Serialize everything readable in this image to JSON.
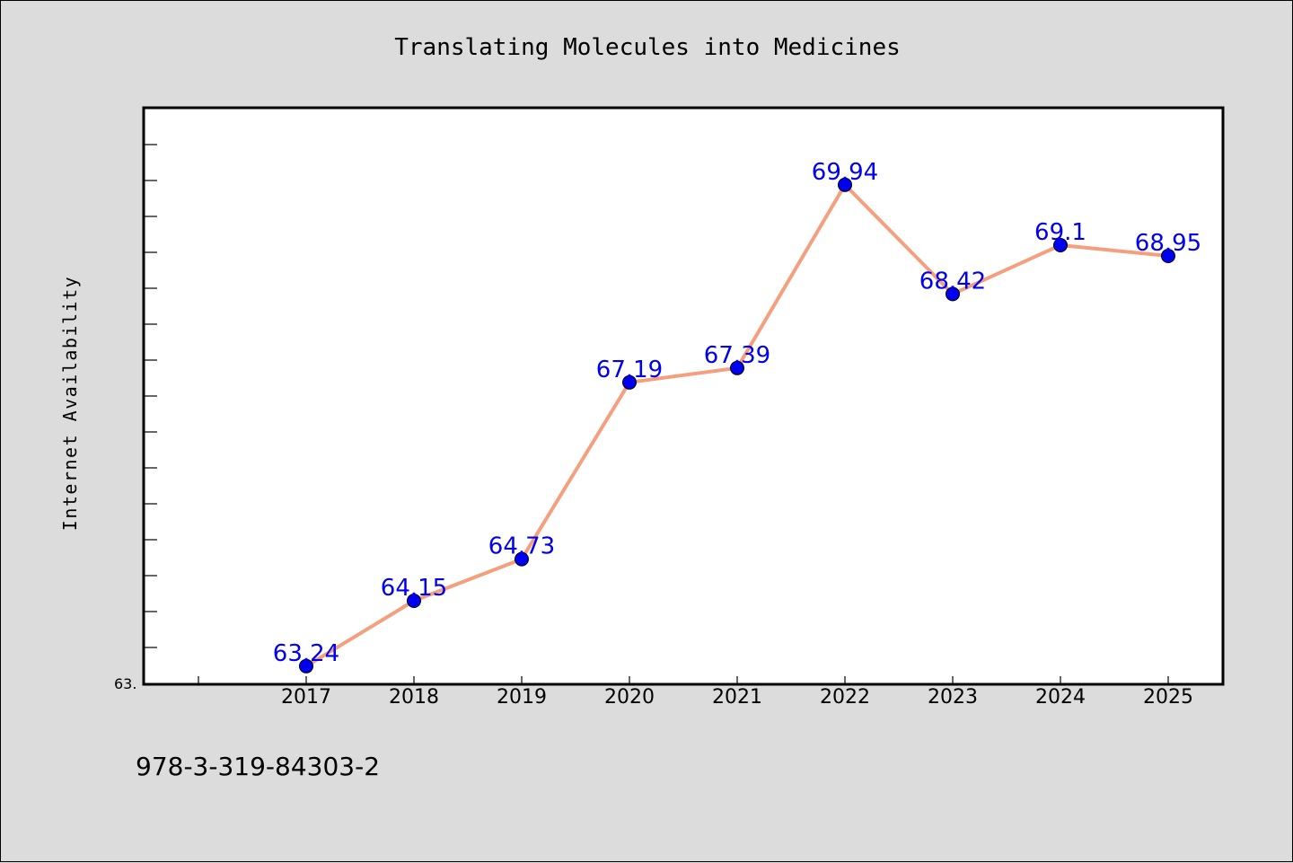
{
  "chart_data": {
    "type": "line",
    "title": "Translating Molecules into Medicines",
    "xlabel": "",
    "ylabel": "Internet Availability",
    "categories": [
      "2017",
      "2018",
      "2019",
      "2020",
      "2021",
      "2022",
      "2023",
      "2024",
      "2025"
    ],
    "series": [
      {
        "values": [
          63.24,
          64.15,
          64.73,
          67.19,
          67.39,
          69.94,
          68.42,
          69.1,
          68.95
        ],
        "labels": [
          "63.24",
          "64.15",
          "64.73",
          "67.19",
          "67.39",
          "69.94",
          "68.42",
          "69.1",
          "68.95"
        ],
        "line_color": "#f4a07e",
        "marker_color": "#0000ee",
        "label_color": "#0000ee"
      }
    ],
    "ylim": [
      63.0,
      71.0
    ],
    "y_tick_label": "63.",
    "grid": false,
    "legend": "none"
  },
  "footer": {
    "text": "978-3-319-84303-2"
  },
  "colors": {
    "background": "#dcdcdc",
    "plot_background": "#ffffff",
    "axis": "#000000"
  }
}
